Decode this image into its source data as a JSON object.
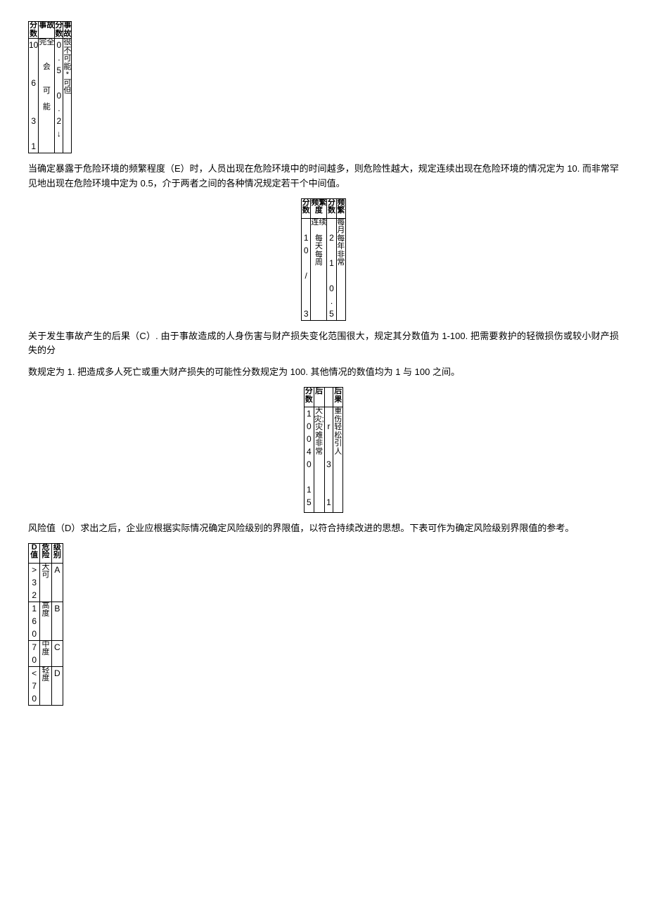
{
  "table1": {
    "type": "table",
    "border_color": "#000000",
    "font_size": 11,
    "columns": [
      "分数",
      "事故",
      "分数",
      "事故"
    ],
    "rows": {
      "col1": "10\n\n\n6\n\n\n3\n\n1",
      "col2": "完全\n\n\n会\n\n\n可\n\n能",
      "col3": "0\n.\n5\n\n0\n.\n2\n↓",
      "col4": "很不可能*可但"
    }
  },
  "para1": "当确定暴露于危险环境的频繁程度（E）时，人员出现在危险环境中的时间越多，则危险性越大，规定连续出现在危险环境的情况定为 10. 而非常罕见地出现在危险环境中定为 0.5，介于两者之间的各种情况规定若干个中间值。",
  "table2": {
    "type": "table",
    "border_color": "#000000",
    "font_size": 11,
    "columns": [
      "分数",
      "频繁度",
      "分数",
      "频繁"
    ],
    "rows": {
      "col1": "\n1\n0\n\n/\n\n\n3",
      "col2": "连续\n\n每\n天\n每\n周",
      "col3": "\n2\n\n1\n\n0\n.\n5",
      "col4": "每月每年非常"
    }
  },
  "para2a": "关于发生事故产生的后果（C）. 由于事故造成的人身伤害与财产损失变化范围很大，规定其分数值为 1-100. 把需要救护的轻微损伤或较小财产损失的分",
  "para2b": "数规定为 1. 把造成多人死亡或重大财产损失的可能性分数规定为 100. 其他情况的数值均为 1 与 100 之间。",
  "table3": {
    "type": "table",
    "border_color": "#000000",
    "font_size": 11,
    "columns": [
      "分数",
      "后",
      "",
      "后果"
    ],
    "rows": {
      "col1": "1\n0\n0\n4\n0\n\n1\n5",
      "col2": "大灾;灾难非常",
      "col3": "\nr\n\n\n3\n\n\n1",
      "col4": "重伤轻松引人"
    }
  },
  "para3": "风险值（D）求出之后，企业应根据实际情况确定风险级别的界限值，以符合持续改进的思想。下表可作为确定风险级别界限值的参考。",
  "table4": {
    "type": "table",
    "border_color": "#000000",
    "font_size": 11,
    "columns": [
      "D值",
      "危险",
      "级别"
    ],
    "rows": [
      {
        "c1": ">\n3\n2",
        "c2": "大可",
        "c3": "A"
      },
      {
        "c1": "1\n6\n0",
        "c2": "高度",
        "c3": "B"
      },
      {
        "c1": "7\n0",
        "c2": "中度",
        "c3": "C"
      },
      {
        "c1": "<\n7\n0",
        "c2": "轻度",
        "c3": "D"
      }
    ]
  }
}
